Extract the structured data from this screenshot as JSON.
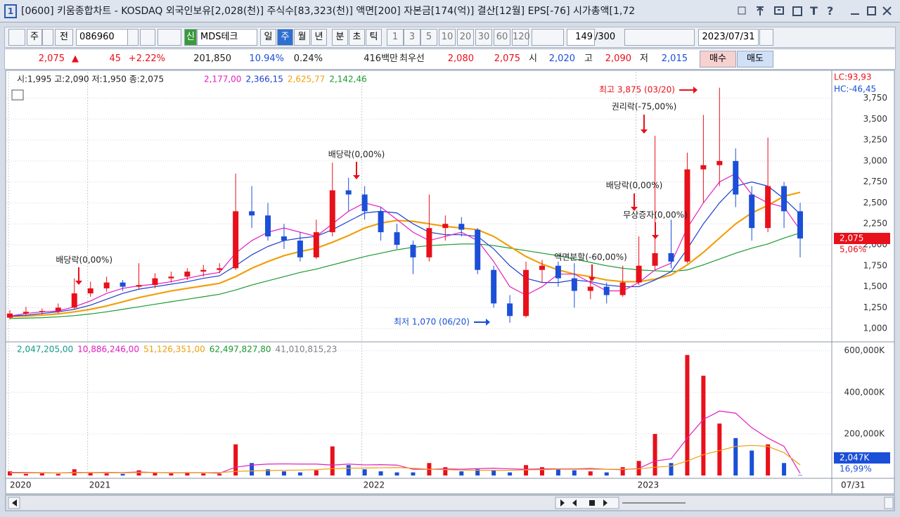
{
  "title_bar": {
    "number": "1",
    "text": "[0600] 키움종합차트 - KOSDAQ 외국인보유[2,028(천)] 주식수[83,323(천)] 액면[200] 자본금[174(억)] 결산[12월] EPS[-76] 시가총액[1,72",
    "text_tool": "T",
    "help": "?"
  },
  "toolbar": {
    "market": "주",
    "kind": "전",
    "code": "086960",
    "new_badge": "신",
    "name": "MDS테크",
    "periods": [
      "일",
      "주",
      "월",
      "년",
      "분",
      "초",
      "틱"
    ],
    "intervals": [
      "1",
      "3",
      "5",
      "10",
      "20",
      "30",
      "60",
      "120"
    ],
    "count": "149",
    "max": "/300",
    "date": "2023/07/31"
  },
  "quote": {
    "price": "2,075",
    "arrow": "▲",
    "change": "45",
    "rate": "+2.22%",
    "volume": "201,850",
    "volume_rate": "10.94%",
    "turnover": "0.24%",
    "amount": "416백만",
    "best_label": "최우선",
    "best_ask": "2,080",
    "best_bid": "2,075",
    "open_label": "시",
    "open": "2,020",
    "high_label": "고",
    "high": "2,090",
    "low_label": "저",
    "low": "2,015",
    "buy": "매수",
    "sell": "매도"
  },
  "chart_data": [
    {
      "type": "candlestick",
      "ohlc_text": "시:1,995 고:2,090 저:1,950 종:2,075",
      "lc": "LC:93,93",
      "hc": "HC:-46,45",
      "last_tag": "2,075",
      "last_rate": "5,06%",
      "x_end_label": "07/31",
      "categories": [
        "2020",
        null,
        null,
        null,
        null,
        "2021",
        null,
        null,
        null,
        null,
        null,
        null,
        null,
        null,
        null,
        null,
        null,
        null,
        null,
        null,
        null,
        null,
        "2022",
        null,
        null,
        null,
        null,
        null,
        null,
        null,
        null,
        null,
        null,
        null,
        null,
        null,
        null,
        null,
        null,
        "2023",
        null,
        null,
        null,
        null,
        null,
        null,
        null,
        null,
        null,
        null
      ],
      "open": [
        1130,
        1180,
        1200,
        1210,
        1250,
        1420,
        1480,
        1550,
        1500,
        1520,
        1600,
        1620,
        1680,
        1700,
        1720,
        2400,
        2350,
        2100,
        2050,
        1850,
        2150,
        2650,
        2600,
        2400,
        2150,
        2000,
        1850,
        2200,
        2250,
        2180,
        1700,
        1300,
        1150,
        1700,
        1750,
        1600,
        1450,
        1500,
        1400,
        1550,
        1750,
        1900,
        1800,
        2900,
        2950,
        3000,
        2600,
        2200,
        2700,
        2400
      ],
      "high": [
        1220,
        1260,
        1240,
        1300,
        1600,
        1560,
        1620,
        1580,
        1780,
        1660,
        1680,
        1720,
        1760,
        1780,
        2850,
        2700,
        2500,
        2250,
        2150,
        2300,
        2980,
        2800,
        2700,
        2450,
        2250,
        2050,
        2600,
        2350,
        2330,
        2200,
        1750,
        1400,
        1800,
        1820,
        1800,
        1780,
        1600,
        1550,
        1750,
        2100,
        3300,
        2300,
        3100,
        3550,
        3875,
        3150,
        2700,
        3280,
        2750,
        2500
      ],
      "low": [
        1110,
        1150,
        1170,
        1180,
        1230,
        1380,
        1440,
        1450,
        1470,
        1480,
        1550,
        1580,
        1620,
        1660,
        1700,
        2200,
        2050,
        1950,
        1800,
        1830,
        2100,
        2400,
        2300,
        2050,
        1950,
        1650,
        1800,
        2050,
        2100,
        1650,
        1250,
        1070,
        1130,
        1550,
        1500,
        1250,
        1350,
        1300,
        1380,
        1520,
        1700,
        1720,
        1780,
        2500,
        2700,
        2450,
        2050,
        2150,
        2200,
        1850
      ],
      "close": [
        1180,
        1200,
        1210,
        1250,
        1420,
        1480,
        1550,
        1500,
        1520,
        1600,
        1620,
        1680,
        1700,
        1720,
        2400,
        2350,
        2100,
        2050,
        1850,
        2150,
        2650,
        2600,
        2400,
        2150,
        2000,
        1850,
        2200,
        2250,
        2180,
        1700,
        1300,
        1150,
        1700,
        1750,
        1600,
        1450,
        1500,
        1400,
        1550,
        1750,
        1900,
        1800,
        2900,
        2950,
        3000,
        2600,
        2200,
        2700,
        2400,
        2075
      ],
      "up_color": "#e8101a",
      "down_color": "#1b4fd8",
      "series": [
        {
          "label": "2,177,00",
          "color": "#e020c0",
          "values": [
            1150,
            1180,
            1200,
            1210,
            1260,
            1330,
            1420,
            1480,
            1510,
            1530,
            1560,
            1600,
            1640,
            1670,
            1900,
            2050,
            2150,
            2200,
            2150,
            2100,
            2250,
            2400,
            2500,
            2450,
            2300,
            2150,
            2050,
            2100,
            2150,
            2050,
            1800,
            1500,
            1400,
            1500,
            1650,
            1650,
            1550,
            1450,
            1450,
            1550,
            1700,
            1780,
            2200,
            2500,
            2750,
            2850,
            2600,
            2500,
            2450,
            2177
          ]
        },
        {
          "label": "2,366,15",
          "color": "#1c3fd0",
          "values": [
            1150,
            1160,
            1180,
            1200,
            1230,
            1280,
            1350,
            1420,
            1470,
            1500,
            1530,
            1560,
            1600,
            1630,
            1750,
            1880,
            1980,
            2050,
            2080,
            2100,
            2180,
            2280,
            2380,
            2400,
            2380,
            2250,
            2150,
            2120,
            2120,
            2100,
            1950,
            1750,
            1600,
            1550,
            1550,
            1580,
            1560,
            1520,
            1500,
            1500,
            1580,
            1680,
            1950,
            2250,
            2500,
            2700,
            2750,
            2700,
            2550,
            2366.15
          ]
        },
        {
          "label": "2,625,77",
          "color": "#f0a010",
          "values": [
            1140,
            1150,
            1160,
            1175,
            1200,
            1230,
            1270,
            1320,
            1370,
            1410,
            1450,
            1480,
            1510,
            1540,
            1620,
            1720,
            1800,
            1870,
            1920,
            1960,
            2030,
            2110,
            2200,
            2260,
            2290,
            2280,
            2250,
            2220,
            2200,
            2180,
            2100,
            1980,
            1860,
            1770,
            1700,
            1650,
            1620,
            1580,
            1560,
            1560,
            1590,
            1640,
            1760,
            1910,
            2080,
            2250,
            2380,
            2470,
            2580,
            2625.77
          ]
        },
        {
          "label": "2,142,46",
          "color": "#1a9a30",
          "values": [
            1120,
            1125,
            1130,
            1140,
            1155,
            1175,
            1200,
            1230,
            1260,
            1290,
            1320,
            1350,
            1380,
            1410,
            1460,
            1520,
            1570,
            1620,
            1670,
            1710,
            1760,
            1810,
            1860,
            1900,
            1940,
            1970,
            1990,
            2000,
            2010,
            2010,
            1990,
            1960,
            1930,
            1900,
            1870,
            1830,
            1790,
            1750,
            1720,
            1700,
            1690,
            1680,
            1700,
            1760,
            1830,
            1900,
            1960,
            2010,
            2080,
            2142.46
          ]
        }
      ],
      "ylim": [
        850,
        4065
      ],
      "yticks": [
        {
          "value": 1000,
          "label": "1,000"
        },
        {
          "value": 1250,
          "label": "1,250"
        },
        {
          "value": 1500,
          "label": "1,500"
        },
        {
          "value": 1750,
          "label": "1,750"
        },
        {
          "value": 2000,
          "label": "2,000"
        },
        {
          "value": 2250,
          "label": "2,250"
        },
        {
          "value": 2500,
          "label": "2,500"
        },
        {
          "value": 2750,
          "label": "2,750"
        },
        {
          "value": 3000,
          "label": "3,000"
        },
        {
          "value": 3250,
          "label": "3,250"
        },
        {
          "value": 3500,
          "label": "3,500"
        },
        {
          "value": 3750,
          "label": "3,750"
        }
      ],
      "annotations": [
        "배당락(0,00%)",
        "배당락(0,00%)",
        "최고 3,875 (03/20)",
        "권리락(-75,00%)",
        "배당락(0,00%)",
        "무상증자(0,00%)",
        "액면분할(-60,00%)",
        "최저 1,070 (06/20)"
      ]
    },
    {
      "type": "bar",
      "last_tag": "2,047K",
      "last_rate": "16,99%",
      "legend": [
        {
          "label": "2,047,205,00",
          "color": "#139a8a"
        },
        {
          "label": "10,886,246,00",
          "color": "#e020c0"
        },
        {
          "label": "51,126,351,00",
          "color": "#f0a010"
        },
        {
          "label": "62,497,827,80",
          "color": "#1a9a30"
        },
        {
          "label": "41,010,815,23",
          "color": "#808080"
        }
      ],
      "values": [
        20000,
        8000,
        10000,
        8000,
        30000,
        15000,
        10000,
        8000,
        25000,
        12000,
        10000,
        12000,
        10000,
        8000,
        150000,
        60000,
        30000,
        20000,
        15000,
        25000,
        140000,
        50000,
        30000,
        20000,
        15000,
        15000,
        60000,
        40000,
        20000,
        30000,
        25000,
        15000,
        50000,
        40000,
        30000,
        25000,
        20000,
        15000,
        40000,
        70000,
        200000,
        60000,
        580000,
        480000,
        250000,
        180000,
        120000,
        150000,
        60000,
        2047
      ],
      "series": [
        {
          "color": "#e020c0",
          "values": [
            15000,
            14000,
            13000,
            12000,
            15000,
            14000,
            15000,
            14000,
            17000,
            14000,
            13000,
            13000,
            14000,
            11000,
            40000,
            50000,
            55000,
            56000,
            55000,
            55000,
            50000,
            55000,
            51000,
            52000,
            50000,
            30000,
            30000,
            32000,
            30000,
            33000,
            35000,
            32000,
            30000,
            32000,
            32000,
            32000,
            34000,
            30000,
            28000,
            34000,
            70000,
            80000,
            180000,
            270000,
            310000,
            300000,
            230000,
            180000,
            140000,
            10886.246
          ]
        },
        {
          "color": "#f0a010",
          "values": [
            12000,
            12000,
            12000,
            12000,
            13000,
            13000,
            13000,
            13000,
            14000,
            14000,
            14000,
            14000,
            14000,
            14000,
            20000,
            22000,
            24000,
            25000,
            26000,
            28000,
            33000,
            35000,
            36000,
            37000,
            38000,
            35000,
            30000,
            28000,
            26000,
            25000,
            25000,
            25000,
            27000,
            28000,
            30000,
            30000,
            30000,
            30000,
            30000,
            32000,
            40000,
            45000,
            70000,
            100000,
            120000,
            140000,
            145000,
            140000,
            110000,
            51126.351
          ]
        }
      ],
      "ylim": [
        0,
        633000
      ],
      "yticks": [
        {
          "value": 200000,
          "label": "200,000K"
        },
        {
          "value": 400000,
          "label": "400,000K"
        },
        {
          "value": 600000,
          "label": "600,000K"
        }
      ]
    }
  ]
}
